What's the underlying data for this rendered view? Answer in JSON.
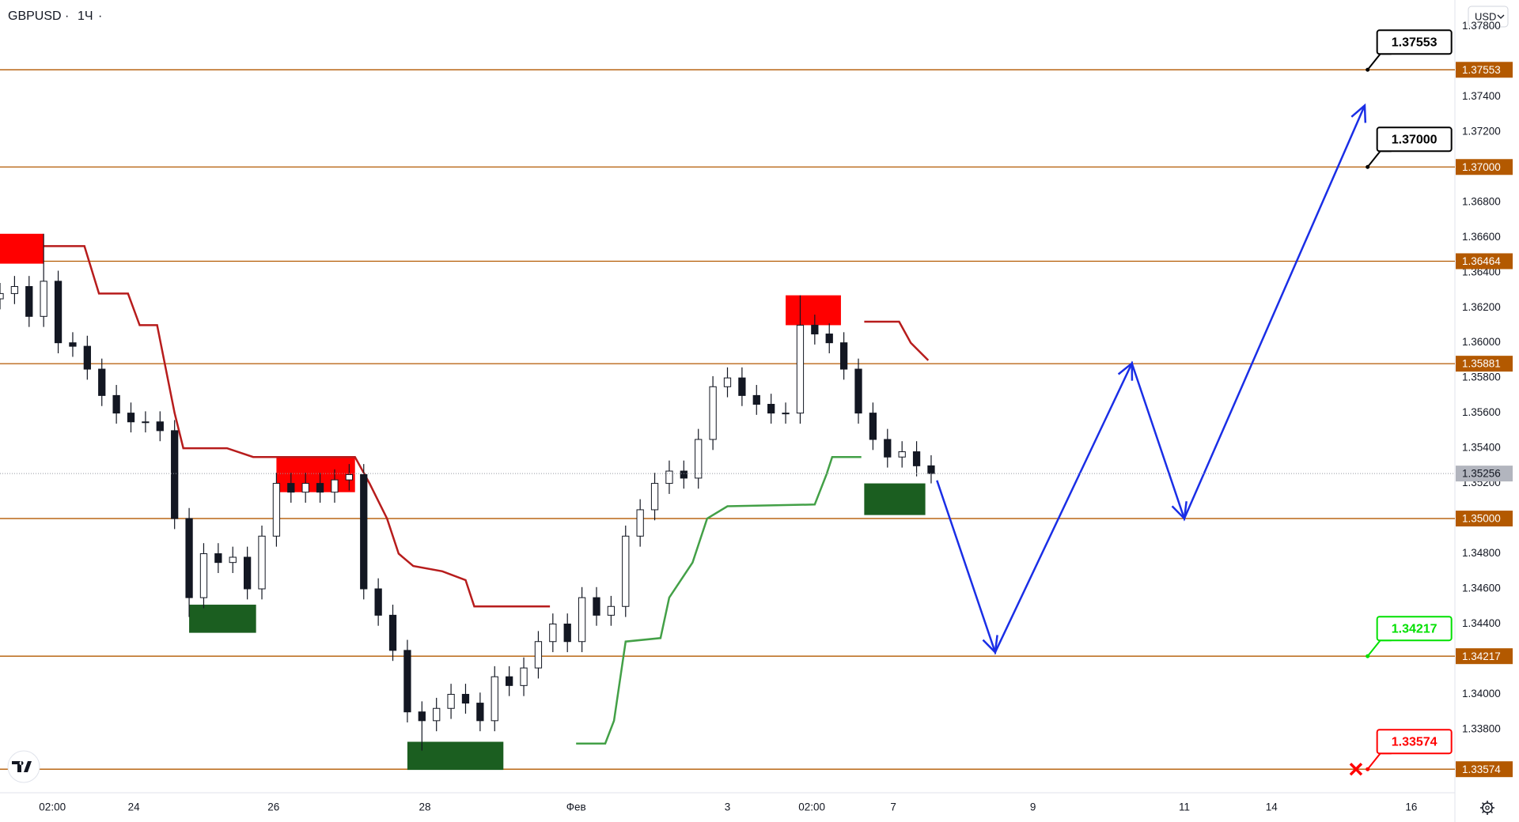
{
  "chart_data": {
    "type": "candlestick",
    "symbol": "GBPUSD",
    "interval": "1Ч",
    "currency": "USD",
    "xlim": [
      0,
      500
    ],
    "ylim": [
      1.3344,
      1.3795
    ],
    "grid": false,
    "xticks": [
      {
        "value": 18,
        "label": "02:00"
      },
      {
        "value": 46,
        "label": "24"
      },
      {
        "value": 94,
        "label": "26"
      },
      {
        "value": 146,
        "label": "28"
      },
      {
        "value": 198,
        "label": "Фев"
      },
      {
        "value": 250,
        "label": "3"
      },
      {
        "value": 279,
        "label": "02:00"
      },
      {
        "value": 307,
        "label": "7"
      },
      {
        "value": 355,
        "label": "9"
      },
      {
        "value": 407,
        "label": "11"
      },
      {
        "value": 437,
        "label": "14"
      },
      {
        "value": 485,
        "label": "16"
      }
    ],
    "yticks": [
      {
        "value": 1.338,
        "label": "1.33800"
      },
      {
        "value": 1.34,
        "label": "1.34000"
      },
      {
        "value": 1.344,
        "label": "1.34400"
      },
      {
        "value": 1.346,
        "label": "1.34600"
      },
      {
        "value": 1.348,
        "label": "1.34800"
      },
      {
        "value": 1.352,
        "label": "1.35200"
      },
      {
        "value": 1.354,
        "label": "1.35400"
      },
      {
        "value": 1.356,
        "label": "1.35600"
      },
      {
        "value": 1.358,
        "label": "1.35800"
      },
      {
        "value": 1.36,
        "label": "1.36000"
      },
      {
        "value": 1.362,
        "label": "1.36200"
      },
      {
        "value": 1.364,
        "label": "1.36400"
      },
      {
        "value": 1.366,
        "label": "1.36600"
      },
      {
        "value": 1.368,
        "label": "1.36800"
      },
      {
        "value": 1.372,
        "label": "1.37200"
      },
      {
        "value": 1.374,
        "label": "1.37400"
      },
      {
        "value": 1.378,
        "label": "1.37800"
      }
    ],
    "x": [
      0,
      5,
      10,
      15,
      20,
      25,
      30,
      35,
      40,
      45,
      50,
      55,
      60,
      65,
      70,
      75,
      80,
      85,
      90,
      95,
      100,
      105,
      110,
      115,
      120,
      125,
      130,
      135,
      140,
      145,
      150,
      155,
      160,
      165,
      170,
      175,
      180,
      185,
      190,
      195,
      200,
      205,
      210,
      215,
      220,
      225,
      230,
      235,
      240,
      245,
      250,
      255,
      260,
      265,
      270,
      275,
      280,
      285,
      290,
      295,
      300,
      305,
      310,
      315,
      320
    ],
    "open": [
      1.3625,
      1.3628,
      1.3632,
      1.3615,
      1.3635,
      1.36,
      1.3598,
      1.3585,
      1.357,
      1.356,
      1.3555,
      1.3555,
      1.355,
      1.35,
      1.3455,
      1.348,
      1.3475,
      1.3478,
      1.346,
      1.349,
      1.352,
      1.3515,
      1.352,
      1.3515,
      1.3522,
      1.3525,
      1.346,
      1.3445,
      1.3425,
      1.339,
      1.3385,
      1.3392,
      1.34,
      1.3395,
      1.3385,
      1.341,
      1.3405,
      1.3415,
      1.343,
      1.344,
      1.343,
      1.3455,
      1.3445,
      1.345,
      1.349,
      1.3505,
      1.352,
      1.3527,
      1.3523,
      1.3545,
      1.3575,
      1.358,
      1.357,
      1.3565,
      1.356,
      1.356,
      1.361,
      1.3605,
      1.36,
      1.3585,
      1.356,
      1.3545,
      1.3535,
      1.3538,
      1.353
    ],
    "high": [
      1.3634,
      1.3638,
      1.3638,
      1.3662,
      1.3641,
      1.3606,
      1.3604,
      1.3591,
      1.3576,
      1.3566,
      1.3561,
      1.3561,
      1.3556,
      1.3506,
      1.3486,
      1.3486,
      1.3484,
      1.3484,
      1.3496,
      1.3526,
      1.3526,
      1.3526,
      1.3526,
      1.3528,
      1.3531,
      1.3531,
      1.3466,
      1.3451,
      1.3431,
      1.3396,
      1.3398,
      1.3406,
      1.3406,
      1.3401,
      1.3416,
      1.3416,
      1.3421,
      1.3436,
      1.3446,
      1.3446,
      1.3461,
      1.3461,
      1.3456,
      1.3496,
      1.3511,
      1.3526,
      1.3533,
      1.3533,
      1.3551,
      1.3581,
      1.3586,
      1.3586,
      1.3576,
      1.3571,
      1.3566,
      1.3627,
      1.3616,
      1.3611,
      1.3606,
      1.3591,
      1.3566,
      1.3551,
      1.3544,
      1.3544,
      1.3536
    ],
    "low": [
      1.3619,
      1.3622,
      1.3609,
      1.3609,
      1.3594,
      1.3592,
      1.3579,
      1.3564,
      1.3554,
      1.3549,
      1.3549,
      1.3544,
      1.3494,
      1.3444,
      1.3449,
      1.3469,
      1.3469,
      1.3454,
      1.3454,
      1.3484,
      1.3509,
      1.3509,
      1.3509,
      1.3509,
      1.3516,
      1.3454,
      1.3439,
      1.3419,
      1.3384,
      1.3368,
      1.3379,
      1.3386,
      1.3389,
      1.3379,
      1.3379,
      1.3399,
      1.3399,
      1.3409,
      1.3424,
      1.3424,
      1.3424,
      1.3439,
      1.3439,
      1.3444,
      1.3484,
      1.3499,
      1.3514,
      1.3517,
      1.3517,
      1.3539,
      1.3569,
      1.3564,
      1.3559,
      1.3554,
      1.3554,
      1.3554,
      1.3599,
      1.3594,
      1.3579,
      1.3554,
      1.3539,
      1.3529,
      1.3529,
      1.3524,
      1.352
    ],
    "close": [
      1.3628,
      1.3632,
      1.3615,
      1.3635,
      1.36,
      1.3598,
      1.3585,
      1.357,
      1.356,
      1.3555,
      1.3555,
      1.355,
      1.35,
      1.3455,
      1.348,
      1.3475,
      1.3478,
      1.346,
      1.349,
      1.352,
      1.3515,
      1.352,
      1.3515,
      1.3522,
      1.3525,
      1.346,
      1.3445,
      1.3425,
      1.339,
      1.3385,
      1.3392,
      1.34,
      1.3395,
      1.3385,
      1.341,
      1.3405,
      1.3415,
      1.343,
      1.344,
      1.343,
      1.3455,
      1.3445,
      1.345,
      1.349,
      1.3505,
      1.352,
      1.3527,
      1.3523,
      1.3545,
      1.3575,
      1.358,
      1.357,
      1.3565,
      1.356,
      1.356,
      1.361,
      1.3605,
      1.36,
      1.3585,
      1.356,
      1.3545,
      1.3535,
      1.3538,
      1.353,
      1.35256
    ],
    "candle_color": "#131722",
    "zones": [
      {
        "x0": 0,
        "x1": 15,
        "low": 1.3645,
        "high": 1.3662,
        "color": "#ff0000"
      },
      {
        "x0": 95,
        "x1": 122,
        "low": 1.3515,
        "high": 1.3535,
        "color": "#ff0000"
      },
      {
        "x0": 270,
        "x1": 289,
        "low": 1.361,
        "high": 1.3627,
        "color": "#ff0000"
      },
      {
        "x0": 65,
        "x1": 88,
        "low": 1.3435,
        "high": 1.3451,
        "color": "#1b5e20"
      },
      {
        "x0": 140,
        "x1": 173,
        "low": 1.3357,
        "high": 1.3373,
        "color": "#1b5e20"
      },
      {
        "x0": 297,
        "x1": 318,
        "low": 1.3502,
        "high": 1.352,
        "color": "#1b5e20"
      }
    ],
    "lines": [
      {
        "color": "#b71c1c",
        "x": [
          15,
          29,
          34,
          44,
          48,
          54,
          60,
          63,
          78,
          87,
          122,
          127,
          133,
          137,
          142,
          152,
          160,
          163,
          189
        ],
        "values": [
          1.3655,
          1.3655,
          1.3628,
          1.3628,
          1.361,
          1.361,
          1.356,
          1.354,
          1.354,
          1.3535,
          1.3535,
          1.352,
          1.35,
          1.348,
          1.3473,
          1.347,
          1.3465,
          1.345,
          1.345
        ]
      },
      {
        "color": "#b71c1c",
        "x": [
          297,
          309,
          313,
          319
        ],
        "values": [
          1.3612,
          1.3612,
          1.36,
          1.359
        ]
      },
      {
        "color": "#43a047",
        "x": [
          198,
          208,
          211,
          215,
          227,
          230,
          238,
          243,
          250,
          280,
          284,
          286,
          296
        ],
        "values": [
          1.3372,
          1.3372,
          1.3385,
          1.343,
          1.3432,
          1.3455,
          1.3475,
          1.35,
          1.3507,
          1.3508,
          1.3525,
          1.3535,
          1.3535
        ]
      }
    ],
    "projection": {
      "color": "#1a2ee6",
      "x": [
        322,
        342,
        389,
        407,
        469
      ],
      "values": [
        1.35217,
        1.34239,
        1.35883,
        1.35,
        1.3735
      ]
    },
    "level_color": "#b35900",
    "levels": [
      {
        "value": 1.37553,
        "label": "1.37553",
        "callout": "#000000"
      },
      {
        "value": 1.37,
        "label": "1.37000",
        "callout": "#000000"
      },
      {
        "value": 1.36464,
        "label": "1.36464"
      },
      {
        "value": 1.35881,
        "label": "1.35881"
      },
      {
        "value": 1.35,
        "label": "1.35000"
      },
      {
        "value": 1.34217,
        "label": "1.34217",
        "callout": "#00e000"
      },
      {
        "value": 1.33574,
        "label": "1.33574",
        "callout": "#ff0000",
        "cross": 466
      }
    ],
    "callout_x": 470,
    "last_price": {
      "value": 1.35256,
      "label": "1.35256"
    }
  }
}
